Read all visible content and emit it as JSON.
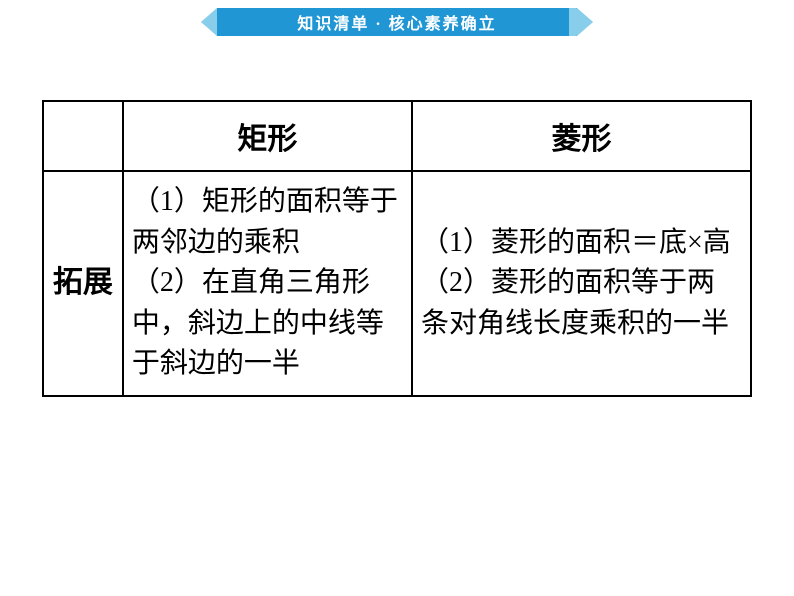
{
  "banner": {
    "text": "知识清单 · 核心素养确立",
    "bg_color": "#2196d4",
    "light_color": "#88cdea",
    "text_color": "#ffffff",
    "fontsize": 16
  },
  "table": {
    "border_color": "#000000",
    "header_fontsize": 30,
    "label_fontsize": 30,
    "content_fontsize": 28,
    "columns": {
      "empty": "",
      "rectangle": "矩形",
      "rhombus": "菱形"
    },
    "row_label": "拓展",
    "cells": {
      "rectangle": "（1）矩形的面积等于两邻边的乘积\n（2）在直角三角形中，斜边上的中线等于斜边的一半",
      "rhombus": "（1）菱形的面积＝底×高\n（2）菱形的面积等于两条对角线长度乘积的一半"
    }
  }
}
